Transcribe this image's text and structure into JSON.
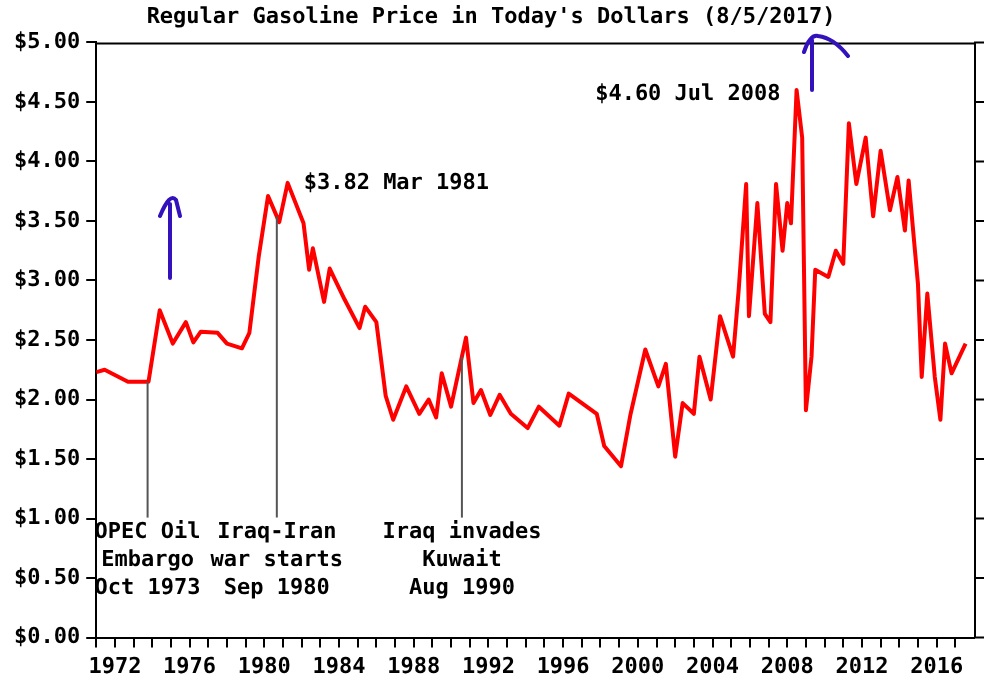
{
  "chart_data": {
    "type": "line",
    "title": "Regular Gasoline Price in Today's Dollars (8/5/2017)",
    "xlim": [
      1971,
      2018
    ],
    "xticks": [
      {
        "value": 1971,
        "label": null
      },
      {
        "value": 1972,
        "label": "1972"
      },
      {
        "value": 1973,
        "label": null
      },
      {
        "value": 1974,
        "label": null
      },
      {
        "value": 1975,
        "label": null
      },
      {
        "value": 1976,
        "label": "1976"
      },
      {
        "value": 1977,
        "label": null
      },
      {
        "value": 1978,
        "label": null
      },
      {
        "value": 1979,
        "label": null
      },
      {
        "value": 1980,
        "label": "1980"
      },
      {
        "value": 1981,
        "label": null
      },
      {
        "value": 1982,
        "label": null
      },
      {
        "value": 1983,
        "label": null
      },
      {
        "value": 1984,
        "label": "1984"
      },
      {
        "value": 1985,
        "label": null
      },
      {
        "value": 1986,
        "label": null
      },
      {
        "value": 1987,
        "label": null
      },
      {
        "value": 1988,
        "label": "1988"
      },
      {
        "value": 1989,
        "label": null
      },
      {
        "value": 1990,
        "label": null
      },
      {
        "value": 1991,
        "label": null
      },
      {
        "value": 1992,
        "label": "1992"
      },
      {
        "value": 1993,
        "label": null
      },
      {
        "value": 1994,
        "label": null
      },
      {
        "value": 1995,
        "label": null
      },
      {
        "value": 1996,
        "label": "1996"
      },
      {
        "value": 1997,
        "label": null
      },
      {
        "value": 1998,
        "label": null
      },
      {
        "value": 1999,
        "label": null
      },
      {
        "value": 2000,
        "label": "2000"
      },
      {
        "value": 2001,
        "label": null
      },
      {
        "value": 2002,
        "label": null
      },
      {
        "value": 2003,
        "label": null
      },
      {
        "value": 2004,
        "label": "2004"
      },
      {
        "value": 2005,
        "label": null
      },
      {
        "value": 2006,
        "label": null
      },
      {
        "value": 2007,
        "label": null
      },
      {
        "value": 2008,
        "label": "2008"
      },
      {
        "value": 2009,
        "label": null
      },
      {
        "value": 2010,
        "label": null
      },
      {
        "value": 2011,
        "label": null
      },
      {
        "value": 2012,
        "label": "2012"
      },
      {
        "value": 2013,
        "label": null
      },
      {
        "value": 2014,
        "label": null
      },
      {
        "value": 2015,
        "label": null
      },
      {
        "value": 2016,
        "label": "2016"
      },
      {
        "value": 2017,
        "label": null
      }
    ],
    "ylim": [
      0,
      5
    ],
    "yticks": [
      {
        "value": 0,
        "label": "$0.00"
      },
      {
        "value": 0.5,
        "label": "$0.50"
      },
      {
        "value": 1,
        "label": "$1.00"
      },
      {
        "value": 1.5,
        "label": "$1.50"
      },
      {
        "value": 2,
        "label": "$2.00"
      },
      {
        "value": 2.5,
        "label": "$2.50"
      },
      {
        "value": 3,
        "label": "$3.00"
      },
      {
        "value": 3.5,
        "label": "$3.50"
      },
      {
        "value": 4,
        "label": "$4.00"
      },
      {
        "value": 4.5,
        "label": "$4.50"
      },
      {
        "value": 5,
        "label": "$5.00"
      }
    ],
    "grid": false,
    "marker": "none",
    "line_style": "solid",
    "series": [
      {
        "color": "#ff0000",
        "x": [
          1971.0,
          1971.45,
          1972.7,
          1973.8,
          1974.4,
          1975.1,
          1975.8,
          1976.2,
          1976.6,
          1977.5,
          1978.0,
          1978.8,
          1979.2,
          1979.7,
          1980.2,
          1980.8,
          1981.25,
          1982.1,
          1982.4,
          1982.6,
          1983.2,
          1983.5,
          1984.3,
          1985.1,
          1985.4,
          1986.0,
          1986.5,
          1986.9,
          1987.6,
          1988.3,
          1988.8,
          1989.2,
          1989.5,
          1990.0,
          1990.8,
          1991.2,
          1991.6,
          1992.1,
          1992.6,
          1993.2,
          1994.1,
          1994.7,
          1995.8,
          1996.3,
          1997.8,
          1998.2,
          1999.1,
          1999.6,
          2000.4,
          2001.1,
          2001.5,
          2002.0,
          2002.4,
          2003.0,
          2003.3,
          2003.9,
          2004.4,
          2005.1,
          2005.4,
          2005.8,
          2005.95,
          2006.4,
          2006.8,
          2007.1,
          2007.4,
          2007.75,
          2008.0,
          2008.2,
          2008.5,
          2008.8,
          2009.0,
          2009.3,
          2009.5,
          2010.2,
          2010.6,
          2011.0,
          2011.3,
          2011.7,
          2012.2,
          2012.6,
          2013.0,
          2013.5,
          2013.9,
          2014.3,
          2014.5,
          2015.0,
          2015.2,
          2015.5,
          2015.9,
          2016.2,
          2016.45,
          2016.8,
          2017.55
        ],
        "values": [
          2.23,
          2.25,
          2.15,
          2.15,
          2.75,
          2.47,
          2.65,
          2.48,
          2.57,
          2.56,
          2.47,
          2.43,
          2.56,
          3.2,
          3.71,
          3.49,
          3.82,
          3.48,
          3.09,
          3.27,
          2.82,
          3.1,
          2.84,
          2.6,
          2.78,
          2.65,
          2.03,
          1.83,
          2.11,
          1.88,
          2.0,
          1.85,
          2.22,
          1.94,
          2.52,
          1.97,
          2.08,
          1.87,
          2.04,
          1.88,
          1.76,
          1.94,
          1.78,
          2.05,
          1.88,
          1.61,
          1.44,
          1.87,
          2.42,
          2.11,
          2.3,
          1.52,
          1.97,
          1.88,
          2.36,
          2.0,
          2.7,
          2.36,
          2.92,
          3.81,
          2.7,
          3.65,
          2.72,
          2.65,
          3.81,
          3.25,
          3.65,
          3.48,
          4.6,
          4.2,
          1.91,
          2.36,
          3.09,
          3.03,
          3.25,
          3.14,
          4.32,
          3.81,
          4.2,
          3.54,
          4.09,
          3.59,
          3.87,
          3.42,
          3.84,
          2.97,
          2.19,
          2.89,
          2.19,
          1.83,
          2.47,
          2.22,
          2.47
        ]
      }
    ],
    "annotations": [
      {
        "text": "$3.82 Mar 1981",
        "x": 1981.25,
        "y": 3.82
      },
      {
        "text": "$4.60 Jul 2008",
        "x": 2008.5,
        "y": 4.6
      }
    ],
    "ref_lines": [
      {
        "axis": "x",
        "value": 1973.75,
        "label": "OPEC Oil\nEmbargo\nOct 1973",
        "color": "#555555"
      },
      {
        "axis": "x",
        "value": 1980.67,
        "label": "Iraq-Iran\nwar starts\nSep 1980",
        "color": "#555555"
      },
      {
        "axis": "x",
        "value": 1990.58,
        "label": "Iraq invades\nKuwait\nAug 1990",
        "color": "#555555"
      }
    ]
  }
}
